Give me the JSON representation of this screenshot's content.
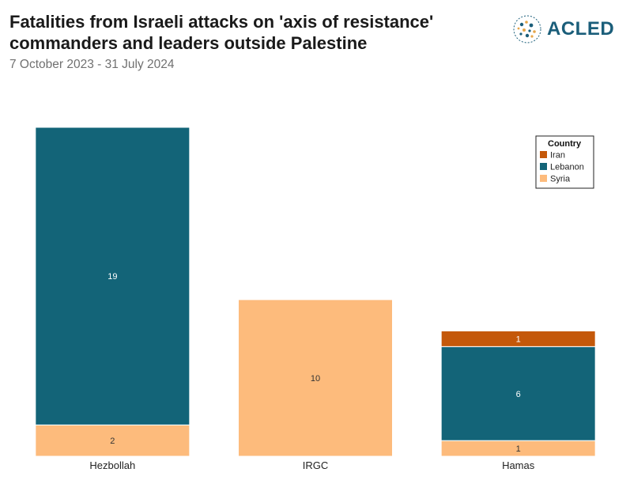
{
  "title": "Fatalities from Israeli attacks on 'axis of resistance' commanders and leaders outside Palestine",
  "subtitle": "7 October 2023 - 31 July 2024",
  "logo": {
    "text": "ACLED",
    "icon": "globe-icon"
  },
  "colors": {
    "Iran": "#c4580a",
    "Lebanon": "#136478",
    "Syria": "#fdbb7c"
  },
  "chart_data": {
    "type": "bar",
    "stacked": true,
    "categories": [
      "Hezbollah",
      "IRGC",
      "Hamas"
    ],
    "series": [
      {
        "name": "Syria",
        "values": [
          2,
          10,
          1
        ]
      },
      {
        "name": "Lebanon",
        "values": [
          19,
          0,
          6
        ]
      },
      {
        "name": "Iran",
        "values": [
          0,
          0,
          1
        ]
      }
    ],
    "legend": {
      "title": "Country",
      "entries": [
        "Iran",
        "Lebanon",
        "Syria"
      ],
      "position": "top-right"
    },
    "xlabel": "",
    "ylabel": "",
    "ylim": [
      0,
      21
    ],
    "grid": false
  }
}
